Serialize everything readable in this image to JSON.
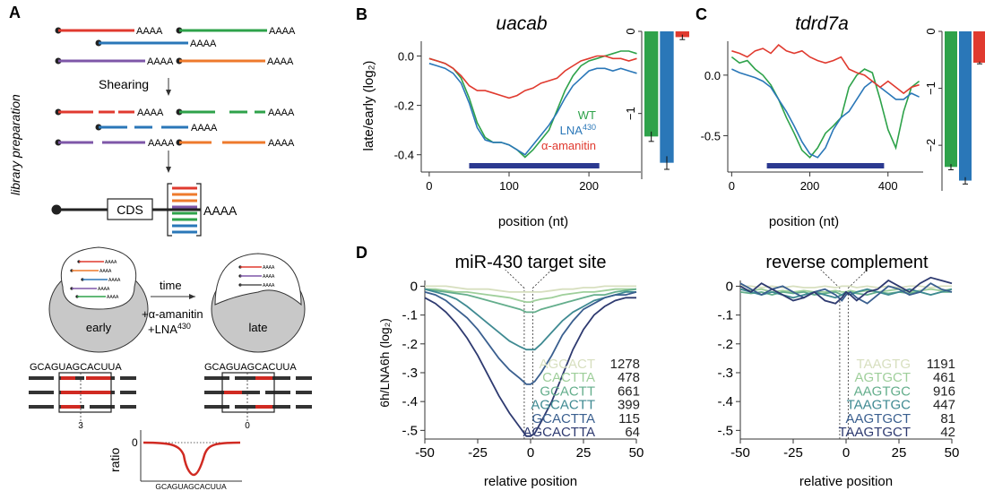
{
  "colors": {
    "red": "#e03a2f",
    "green": "#2ea24a",
    "blue": "#2a77b8",
    "purple": "#7e57a8",
    "orange": "#ee7a2c",
    "navy": "#2b3990",
    "gray": "#c9c9c9",
    "d_shades": [
      "#d7dfbf",
      "#9fcf9b",
      "#64ae8c",
      "#3f8a92",
      "#3a5f8f",
      "#2e3a70"
    ]
  },
  "panel_letters": {
    "a": "A",
    "b": "B",
    "c": "C",
    "d": "D"
  },
  "panel_a": {
    "vertical_label": "library preparation",
    "poly_a": "AAAA",
    "shearing": "Shearing",
    "cds": "CDS",
    "time": "time",
    "early": "early",
    "late": "late",
    "treatment_1": "+α-amanitin",
    "treatment_2_prefix": "+LNA",
    "treatment_2_sup": "430",
    "sequence": "GCAGUAGCACUUA",
    "offset_left": "3",
    "offset_right": "0",
    "ratio_label": "ratio",
    "ratio_zero": "0",
    "ratio_sequence": "GCAGUAGCACUUA"
  },
  "chart_data": [
    {
      "id": "B-profile",
      "type": "line",
      "title": "uacab",
      "xlabel": "position (nt)",
      "ylabel": "late/early (log₂)",
      "xlim": [
        -10,
        265
      ],
      "ylim": [
        -0.47,
        0.06
      ],
      "xticks": [
        0,
        100,
        200
      ],
      "yticks": [
        0.0,
        -0.2,
        -0.4
      ],
      "ytick_labels": [
        "0.0",
        "-0.2",
        "-0.4"
      ],
      "cds_bar": [
        50,
        213
      ],
      "series": [
        {
          "name": "WT",
          "x": [
            0,
            10,
            20,
            30,
            40,
            50,
            60,
            70,
            80,
            90,
            100,
            110,
            120,
            130,
            140,
            150,
            160,
            170,
            180,
            190,
            200,
            210,
            220,
            230,
            240,
            250,
            260
          ],
          "y": [
            -0.01,
            -0.02,
            -0.03,
            -0.05,
            -0.09,
            -0.17,
            -0.27,
            -0.33,
            -0.35,
            -0.35,
            -0.36,
            -0.38,
            -0.41,
            -0.38,
            -0.34,
            -0.3,
            -0.22,
            -0.14,
            -0.08,
            -0.04,
            -0.02,
            -0.01,
            0.0,
            0.01,
            0.02,
            0.02,
            0.01
          ]
        },
        {
          "name": "LNA430",
          "x": [
            0,
            10,
            20,
            30,
            40,
            50,
            60,
            70,
            80,
            90,
            100,
            110,
            120,
            130,
            140,
            150,
            160,
            170,
            180,
            190,
            200,
            210,
            220,
            230,
            240,
            250,
            260
          ],
          "y": [
            -0.03,
            -0.04,
            -0.05,
            -0.07,
            -0.11,
            -0.19,
            -0.29,
            -0.34,
            -0.35,
            -0.35,
            -0.36,
            -0.38,
            -0.4,
            -0.36,
            -0.32,
            -0.28,
            -0.23,
            -0.17,
            -0.12,
            -0.09,
            -0.06,
            -0.05,
            -0.05,
            -0.06,
            -0.05,
            -0.06,
            -0.07
          ]
        },
        {
          "name": "α-amanitin",
          "x": [
            0,
            10,
            20,
            30,
            40,
            50,
            60,
            70,
            80,
            90,
            100,
            110,
            120,
            130,
            140,
            150,
            160,
            170,
            180,
            190,
            200,
            210,
            220,
            230,
            240,
            250,
            260
          ],
          "y": [
            -0.01,
            -0.02,
            -0.03,
            -0.05,
            -0.08,
            -0.12,
            -0.14,
            -0.14,
            -0.15,
            -0.16,
            -0.17,
            -0.16,
            -0.14,
            -0.13,
            -0.11,
            -0.1,
            -0.09,
            -0.06,
            -0.04,
            -0.02,
            -0.01,
            0.0,
            0.0,
            -0.01,
            -0.01,
            -0.02,
            -0.01
          ]
        }
      ]
    },
    {
      "id": "B-bars",
      "type": "bar",
      "ytick_labels": [
        "0",
        "−1"
      ],
      "ylim": [
        -1.8,
        0
      ],
      "series": [
        {
          "name": "WT",
          "value": -1.28,
          "err": 0.06
        },
        {
          "name": "LNA430",
          "value": -1.6,
          "err": 0.08
        },
        {
          "name": "α-amanitin",
          "value": -0.07,
          "err": 0.03
        }
      ]
    },
    {
      "id": "C-profile",
      "type": "line",
      "title": "tdrd7a",
      "xlabel": "position (nt)",
      "xlim": [
        -10,
        490
      ],
      "ylim": [
        -0.8,
        0.28
      ],
      "xticks": [
        0,
        200,
        400
      ],
      "yticks": [
        0.0,
        -0.5
      ],
      "ytick_labels": [
        "0.0",
        "-0.5"
      ],
      "cds_bar": [
        90,
        390
      ],
      "series": [
        {
          "name": "WT",
          "x": [
            0,
            20,
            40,
            60,
            80,
            100,
            120,
            140,
            160,
            180,
            200,
            220,
            240,
            260,
            280,
            300,
            320,
            340,
            360,
            380,
            400,
            420,
            440,
            460,
            480
          ],
          "y": [
            0.15,
            0.1,
            0.12,
            0.05,
            0.0,
            -0.08,
            -0.2,
            -0.35,
            -0.48,
            -0.62,
            -0.68,
            -0.6,
            -0.48,
            -0.42,
            -0.35,
            -0.1,
            0.0,
            0.05,
            0.02,
            -0.2,
            -0.45,
            -0.6,
            -0.3,
            -0.1,
            -0.05
          ]
        },
        {
          "name": "LNA430",
          "x": [
            0,
            20,
            40,
            60,
            80,
            100,
            120,
            140,
            160,
            180,
            200,
            220,
            240,
            260,
            280,
            300,
            320,
            340,
            360,
            380,
            400,
            420,
            440,
            460,
            480
          ],
          "y": [
            0.05,
            0.02,
            0.0,
            -0.02,
            -0.05,
            -0.1,
            -0.2,
            -0.3,
            -0.42,
            -0.55,
            -0.65,
            -0.68,
            -0.6,
            -0.45,
            -0.35,
            -0.3,
            -0.2,
            -0.1,
            -0.05,
            -0.1,
            -0.15,
            -0.2,
            -0.2,
            -0.15,
            -0.18
          ]
        },
        {
          "name": "α-amanitin",
          "x": [
            0,
            20,
            40,
            60,
            80,
            100,
            120,
            140,
            160,
            180,
            200,
            220,
            240,
            260,
            280,
            300,
            320,
            340,
            360,
            380,
            400,
            420,
            440,
            460,
            480
          ],
          "y": [
            0.2,
            0.18,
            0.15,
            0.2,
            0.22,
            0.18,
            0.25,
            0.2,
            0.18,
            0.2,
            0.15,
            0.12,
            0.1,
            0.12,
            0.15,
            0.05,
            0.02,
            0.0,
            -0.05,
            -0.1,
            -0.05,
            -0.1,
            -0.15,
            -0.1,
            -0.08
          ]
        }
      ]
    },
    {
      "id": "C-bars",
      "type": "bar",
      "ytick_labels": [
        "0",
        "−1",
        "−2"
      ],
      "ylim": [
        -2.8,
        0
      ],
      "series": [
        {
          "name": "WT",
          "value": -2.38,
          "err": 0.05
        },
        {
          "name": "LNA430",
          "value": -2.62,
          "err": 0.06
        },
        {
          "name": "α-amanitin",
          "value": -0.55,
          "err": 0.02
        }
      ]
    },
    {
      "id": "D-left",
      "type": "line",
      "title": "miR-430 target site",
      "xlabel": "relative position",
      "ylabel": "6h/LNA6h (log₂)",
      "xlim": [
        -50,
        50
      ],
      "ylim": [
        -0.53,
        0.02
      ],
      "xticks": [
        -50,
        -25,
        0,
        25,
        50
      ],
      "yticks": [
        0,
        -0.1,
        -0.2,
        -0.3,
        -0.4,
        -0.5
      ],
      "ytick_labels": [
        "0",
        "-.1",
        "-.2",
        "-.3",
        "-.4",
        "-.5"
      ],
      "x": [
        -50,
        -45,
        -40,
        -35,
        -30,
        -25,
        -20,
        -15,
        -10,
        -5,
        -2,
        0,
        2,
        5,
        10,
        15,
        20,
        25,
        30,
        35,
        40,
        45,
        50
      ],
      "series": [
        {
          "name": "AGCACT",
          "count": "1278",
          "y": [
            0,
            0,
            0,
            -0.005,
            -0.01,
            -0.01,
            -0.01,
            -0.015,
            -0.02,
            -0.02,
            -0.02,
            -0.02,
            -0.02,
            -0.02,
            -0.015,
            -0.01,
            -0.01,
            -0.005,
            -0.005,
            0,
            0,
            0,
            0
          ]
        },
        {
          "name": "CACTTA",
          "count": "478",
          "y": [
            -0.01,
            -0.01,
            -0.015,
            -0.02,
            -0.02,
            -0.025,
            -0.03,
            -0.035,
            -0.04,
            -0.05,
            -0.055,
            -0.055,
            -0.05,
            -0.045,
            -0.04,
            -0.03,
            -0.025,
            -0.02,
            -0.02,
            -0.015,
            -0.01,
            -0.01,
            -0.01
          ]
        },
        {
          "name": "GCACTT",
          "count": "661",
          "y": [
            -0.01,
            -0.015,
            -0.02,
            -0.025,
            -0.03,
            -0.04,
            -0.05,
            -0.06,
            -0.07,
            -0.08,
            -0.09,
            -0.09,
            -0.09,
            -0.08,
            -0.07,
            -0.06,
            -0.05,
            -0.04,
            -0.03,
            -0.03,
            -0.02,
            -0.015,
            -0.01
          ]
        },
        {
          "name": "AGCACTT",
          "count": "399",
          "y": [
            -0.01,
            -0.02,
            -0.03,
            -0.045,
            -0.07,
            -0.1,
            -0.13,
            -0.16,
            -0.19,
            -0.21,
            -0.22,
            -0.22,
            -0.22,
            -0.2,
            -0.16,
            -0.12,
            -0.09,
            -0.07,
            -0.05,
            -0.04,
            -0.03,
            -0.02,
            -0.02
          ]
        },
        {
          "name": "GCACTTA",
          "count": "115",
          "y": [
            -0.02,
            -0.03,
            -0.05,
            -0.08,
            -0.11,
            -0.15,
            -0.2,
            -0.25,
            -0.29,
            -0.32,
            -0.34,
            -0.34,
            -0.33,
            -0.3,
            -0.24,
            -0.17,
            -0.12,
            -0.08,
            -0.06,
            -0.04,
            -0.03,
            -0.03,
            -0.02
          ]
        },
        {
          "name": "AGCACTTA",
          "count": "64",
          "y": [
            -0.04,
            -0.06,
            -0.09,
            -0.13,
            -0.18,
            -0.24,
            -0.31,
            -0.38,
            -0.44,
            -0.49,
            -0.52,
            -0.52,
            -0.51,
            -0.47,
            -0.4,
            -0.31,
            -0.22,
            -0.15,
            -0.1,
            -0.07,
            -0.05,
            -0.04,
            -0.04
          ]
        }
      ]
    },
    {
      "id": "D-right",
      "type": "line",
      "title": "reverse complement",
      "xlabel": "relative position",
      "xlim": [
        -50,
        50
      ],
      "ylim": [
        -0.53,
        0.02
      ],
      "xticks": [
        -50,
        -25,
        0,
        25,
        50
      ],
      "yticks": [
        0,
        -0.1,
        -0.2,
        -0.3,
        -0.4,
        -0.5
      ],
      "ytick_labels": [
        "0",
        "-.1",
        "-.2",
        "-.3",
        "-.4",
        "-.5"
      ],
      "x": [
        -50,
        -45,
        -40,
        -35,
        -30,
        -25,
        -20,
        -15,
        -10,
        -5,
        -2,
        0,
        2,
        5,
        10,
        15,
        20,
        25,
        30,
        35,
        40,
        45,
        50
      ],
      "series": [
        {
          "name": "TAAGTG",
          "count": "1191",
          "y": [
            0,
            0,
            -0.005,
            0,
            -0.005,
            0,
            -0.005,
            -0.005,
            0,
            -0.005,
            0,
            0,
            0,
            -0.005,
            0,
            -0.005,
            0,
            -0.005,
            0,
            0,
            -0.005,
            0,
            0
          ]
        },
        {
          "name": "AGTGCT",
          "count": "461",
          "y": [
            -0.01,
            -0.015,
            -0.01,
            -0.02,
            -0.015,
            -0.02,
            -0.015,
            -0.02,
            -0.02,
            -0.015,
            -0.02,
            -0.02,
            -0.015,
            -0.02,
            -0.015,
            -0.02,
            -0.015,
            -0.01,
            -0.02,
            -0.015,
            -0.01,
            -0.015,
            -0.01
          ]
        },
        {
          "name": "AAGTGC",
          "count": "916",
          "y": [
            -0.02,
            -0.025,
            -0.02,
            -0.03,
            -0.02,
            -0.025,
            -0.02,
            -0.03,
            -0.025,
            -0.02,
            -0.03,
            -0.025,
            -0.02,
            -0.025,
            -0.03,
            -0.02,
            -0.025,
            -0.02,
            -0.025,
            -0.02,
            -0.03,
            -0.02,
            -0.02
          ]
        },
        {
          "name": "TAAGTGC",
          "count": "447",
          "y": [
            -0.01,
            -0.02,
            -0.03,
            -0.02,
            -0.03,
            -0.04,
            -0.03,
            -0.02,
            -0.03,
            -0.04,
            -0.03,
            -0.02,
            -0.03,
            -0.02,
            -0.01,
            -0.02,
            -0.03,
            -0.02,
            -0.01,
            -0.02,
            -0.03,
            -0.02,
            -0.01
          ]
        },
        {
          "name": "AAGTGCT",
          "count": "81",
          "y": [
            0.01,
            -0.01,
            -0.03,
            -0.01,
            0.0,
            -0.02,
            -0.04,
            -0.02,
            -0.01,
            -0.03,
            -0.05,
            -0.03,
            -0.02,
            -0.04,
            -0.06,
            -0.03,
            0.0,
            -0.01,
            -0.03,
            -0.02,
            0.01,
            -0.01,
            -0.02
          ]
        },
        {
          "name": "TAAGTGCT",
          "count": "42",
          "y": [
            0.0,
            -0.02,
            0.01,
            -0.01,
            -0.03,
            -0.05,
            -0.04,
            -0.02,
            -0.05,
            -0.06,
            -0.04,
            -0.02,
            -0.03,
            -0.05,
            -0.02,
            -0.01,
            0.02,
            0.0,
            -0.02,
            0.01,
            0.03,
            0.02,
            0.01
          ]
        }
      ]
    }
  ]
}
